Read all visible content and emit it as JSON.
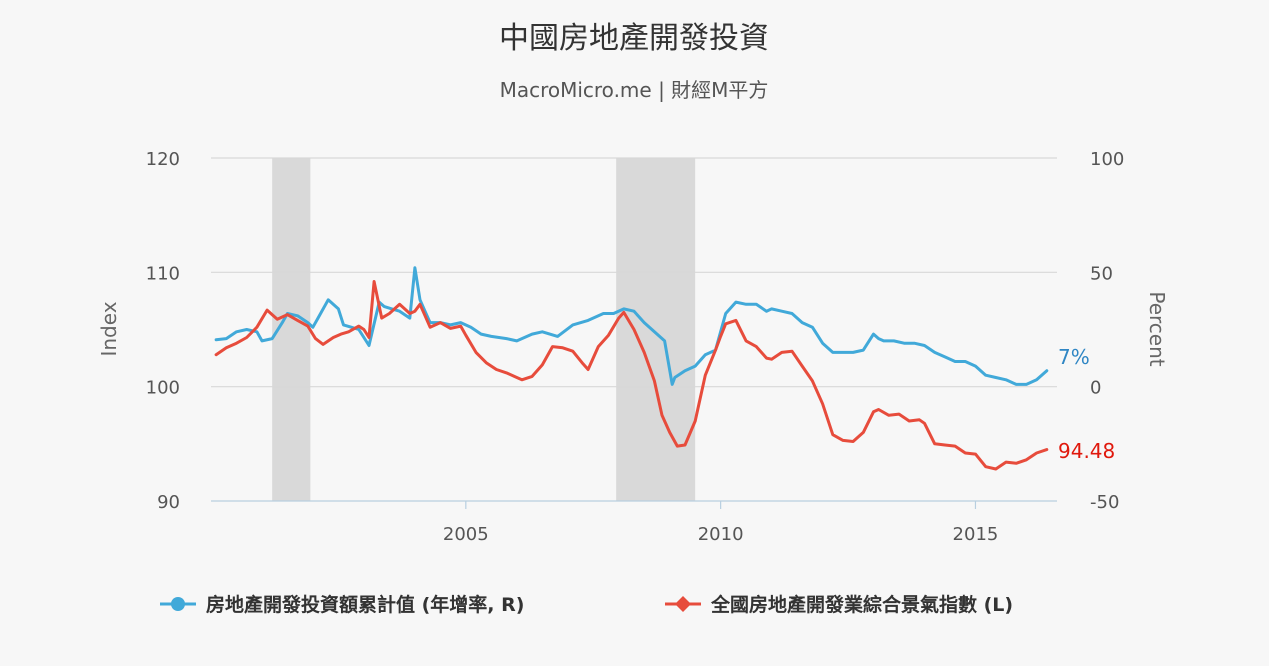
{
  "chart_data": {
    "type": "line",
    "title": "中國房地產開發投資",
    "subtitle": "MacroMicro.me | 財經M平方",
    "y_left": {
      "label": "Index",
      "range": [
        90,
        120
      ],
      "ticks": [
        "90",
        "100",
        "110",
        "120"
      ]
    },
    "y_right": {
      "label": "Percent",
      "range": [
        -50,
        100
      ],
      "ticks": [
        "-50",
        "0",
        "50",
        "100"
      ]
    },
    "x_axis": {
      "range": [
        2000.0,
        2016.6
      ],
      "ticks": [
        "2005",
        "2010",
        "2015"
      ]
    },
    "grid": true,
    "legend_position": "bottom",
    "recession_bands": [
      [
        2001.2,
        2001.95
      ],
      [
        2007.95,
        2009.5
      ]
    ],
    "colors": {
      "investment": "#41a9d9",
      "climate": "#e74c3c",
      "band": "#d9d9d9",
      "grid": "#d8d8d8"
    },
    "series": [
      {
        "name": "房地產開發投資額累計值 (年增率, R)",
        "axis": "right",
        "color": "#41a9d9",
        "end_label": "7%",
        "x": [
          2000.1,
          2000.3,
          2000.5,
          2000.7,
          2000.9,
          2001.0,
          2001.2,
          2001.4,
          2001.5,
          2001.7,
          2001.9,
          2002.0,
          2002.1,
          2002.3,
          2002.5,
          2002.6,
          2002.75,
          2002.9,
          2003.1,
          2003.3,
          2003.4,
          2003.55,
          2003.7,
          2003.9,
          2004.0,
          2004.1,
          2004.2,
          2004.3,
          2004.5,
          2004.7,
          2004.9,
          2005.1,
          2005.3,
          2005.5,
          2005.8,
          2006.0,
          2006.3,
          2006.5,
          2006.8,
          2007.1,
          2007.4,
          2007.7,
          2007.9,
          2008.1,
          2008.3,
          2008.5,
          2008.7,
          2008.9,
          2009.05,
          2009.1,
          2009.3,
          2009.5,
          2009.7,
          2009.9,
          2010.1,
          2010.3,
          2010.5,
          2010.7,
          2010.9,
          2011.0,
          2011.2,
          2011.4,
          2011.6,
          2011.8,
          2012.0,
          2012.2,
          2012.4,
          2012.6,
          2012.8,
          2013.0,
          2013.1,
          2013.2,
          2013.4,
          2013.6,
          2013.8,
          2014.0,
          2014.2,
          2014.4,
          2014.6,
          2014.8,
          2015.0,
          2015.2,
          2015.4,
          2015.6,
          2015.8,
          2016.0,
          2016.2,
          2016.4
        ],
        "values": [
          20.5,
          21.0,
          24.0,
          25.0,
          24.0,
          20.0,
          21.0,
          28.0,
          32.0,
          31.0,
          28.0,
          26.0,
          30.0,
          38.0,
          34.0,
          27.0,
          26.0,
          25.0,
          18.0,
          37.0,
          35.0,
          34.0,
          33.0,
          30.0,
          52.0,
          38.0,
          33.0,
          28.0,
          28.0,
          27.0,
          28.0,
          26.0,
          23.0,
          22.0,
          21.0,
          20.0,
          23.0,
          24.0,
          22.0,
          27.0,
          29.0,
          32.0,
          32.0,
          34.0,
          33.0,
          28.0,
          24.0,
          20.0,
          1.0,
          4.0,
          7.0,
          9.0,
          14.0,
          16.0,
          32.0,
          37.0,
          36.0,
          36.0,
          33.0,
          34.0,
          33.0,
          32.0,
          28.0,
          26.0,
          19.0,
          15.0,
          15.0,
          15.0,
          16.0,
          23.0,
          21.0,
          20.0,
          20.0,
          19.0,
          19.0,
          18.0,
          15.0,
          13.0,
          11.0,
          11.0,
          9.0,
          5.0,
          4.0,
          3.0,
          1.0,
          1.0,
          3.0,
          7.0
        ]
      },
      {
        "name": "全國房地產開發業綜合景氣指數 (L)",
        "axis": "left",
        "color": "#e74c3c",
        "end_label": "94.48",
        "x": [
          2000.1,
          2000.3,
          2000.5,
          2000.7,
          2000.9,
          2001.1,
          2001.3,
          2001.5,
          2001.7,
          2001.9,
          2002.05,
          2002.2,
          2002.4,
          2002.55,
          2002.7,
          2002.9,
          2003.0,
          2003.1,
          2003.2,
          2003.35,
          2003.5,
          2003.7,
          2003.9,
          2004.0,
          2004.1,
          2004.3,
          2004.5,
          2004.7,
          2004.9,
          2005.0,
          2005.2,
          2005.4,
          2005.6,
          2005.8,
          2006.0,
          2006.1,
          2006.3,
          2006.5,
          2006.7,
          2006.9,
          2007.1,
          2007.3,
          2007.4,
          2007.6,
          2007.8,
          2008.0,
          2008.1,
          2008.3,
          2008.5,
          2008.7,
          2008.85,
          2009.0,
          2009.15,
          2009.3,
          2009.5,
          2009.7,
          2009.9,
          2010.0,
          2010.1,
          2010.3,
          2010.5,
          2010.7,
          2010.9,
          2011.0,
          2011.2,
          2011.4,
          2011.6,
          2011.8,
          2012.0,
          2012.2,
          2012.4,
          2012.6,
          2012.8,
          2013.0,
          2013.1,
          2013.3,
          2013.5,
          2013.7,
          2013.9,
          2014.0,
          2014.2,
          2014.4,
          2014.6,
          2014.8,
          2015.0,
          2015.2,
          2015.4,
          2015.6,
          2015.8,
          2016.0,
          2016.2,
          2016.4
        ],
        "values": [
          102.8,
          103.4,
          103.8,
          104.3,
          105.2,
          106.7,
          105.9,
          106.3,
          105.8,
          105.3,
          104.2,
          103.7,
          104.3,
          104.6,
          104.8,
          105.3,
          105.0,
          104.3,
          109.2,
          106.0,
          106.4,
          107.2,
          106.4,
          106.6,
          107.2,
          105.2,
          105.6,
          105.1,
          105.3,
          104.5,
          103.0,
          102.1,
          101.5,
          101.2,
          100.8,
          100.6,
          100.9,
          101.9,
          103.5,
          103.4,
          103.1,
          102.0,
          101.5,
          103.5,
          104.5,
          106.0,
          106.5,
          105.0,
          103.0,
          100.5,
          97.5,
          96.0,
          94.8,
          94.9,
          97.0,
          101.0,
          103.2,
          104.4,
          105.5,
          105.8,
          104.0,
          103.5,
          102.5,
          102.4,
          103.0,
          103.1,
          101.8,
          100.5,
          98.5,
          95.8,
          95.3,
          95.2,
          96.0,
          97.8,
          98.0,
          97.5,
          97.6,
          97.0,
          97.1,
          96.8,
          95.0,
          94.9,
          94.8,
          94.2,
          94.1,
          93.0,
          92.8,
          93.4,
          93.3,
          93.6,
          94.2,
          94.5
        ]
      }
    ]
  }
}
